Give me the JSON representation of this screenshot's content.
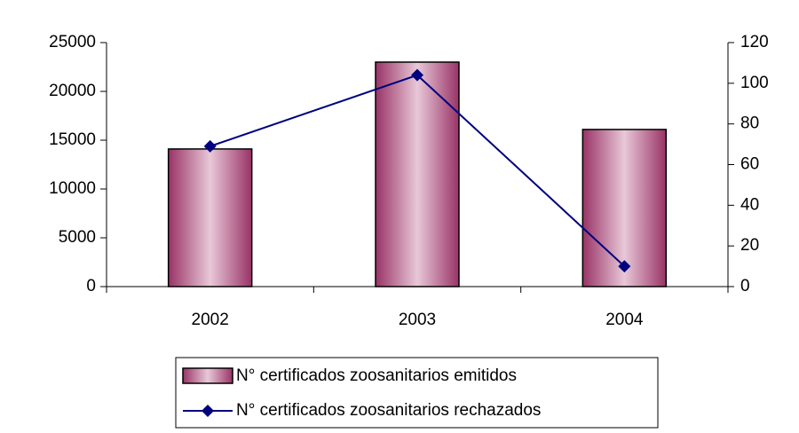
{
  "chart_data": {
    "type": "bar",
    "categories": [
      "2002",
      "2003",
      "2004"
    ],
    "series": [
      {
        "name": "N° certificados zoosanitarios emitidos",
        "type": "bar",
        "color": "#993366",
        "values": [
          14100,
          23000,
          16100
        ]
      },
      {
        "name": "N° certificados zoosanitarios rechazados",
        "type": "line",
        "axis": "y2",
        "color": "#000080",
        "values": [
          69,
          104,
          10
        ]
      }
    ],
    "ylim": [
      0,
      25000
    ],
    "yticks": [
      0,
      5000,
      10000,
      15000,
      20000,
      25000
    ],
    "y2lim": [
      0,
      120
    ],
    "y2ticks": [
      0,
      20,
      40,
      60,
      80,
      100,
      120
    ],
    "legend": "bottom"
  }
}
